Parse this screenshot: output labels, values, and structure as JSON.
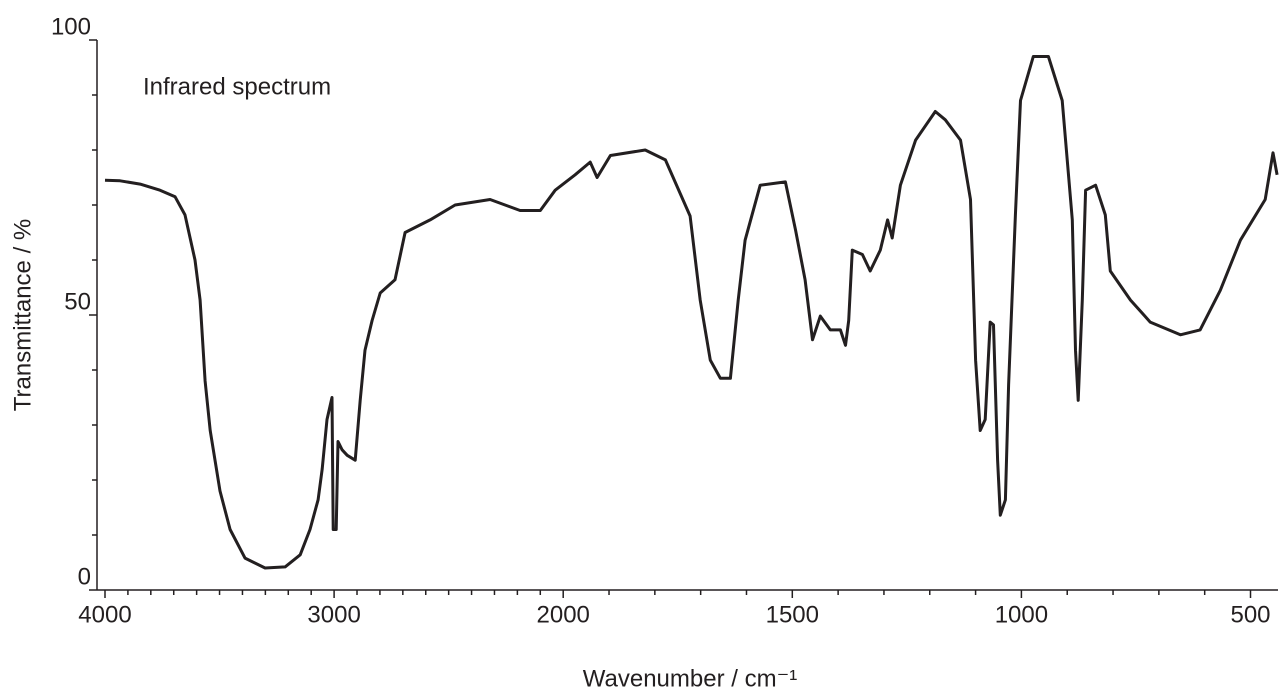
{
  "chart_data": {
    "type": "line",
    "annotation": "Infrared spectrum",
    "xlabel": "Wavenumber / cm⁻¹",
    "ylabel": "Transmittance / %",
    "xlim": [
      4000,
      440
    ],
    "x_scale_break": 2000,
    "x_scale_factor": 2,
    "xticks": [
      4000,
      3000,
      2000,
      1500,
      1000,
      500
    ],
    "xminorticks": [
      3900,
      3800,
      3700,
      3600,
      3500,
      3400,
      3300,
      3200,
      3100,
      2900,
      2800,
      2700,
      2600,
      2500,
      2400,
      2300,
      2200,
      2100,
      1900,
      1800,
      1700,
      1600,
      1400,
      1300,
      1200,
      1100,
      900,
      800,
      700,
      600
    ],
    "ylim": [
      0,
      100
    ],
    "yticks": [
      0,
      50,
      100
    ],
    "yminorticks": [
      10,
      20,
      30,
      40,
      60,
      70,
      80,
      90
    ],
    "series": [
      {
        "name": "Transmittance",
        "color": "#231f20",
        "x": [
          4000,
          3934,
          3847,
          3760,
          3694,
          3651,
          3607,
          3585,
          3563,
          3541,
          3498,
          3454,
          3389,
          3301,
          3214,
          3148,
          3105,
          3070,
          3052,
          3031,
          3009,
          3004,
          2991,
          2983,
          2965,
          2943,
          2908,
          2886,
          2865,
          2834,
          2799,
          2734,
          2690,
          2581,
          2472,
          2319,
          2188,
          2100,
          2035,
          1974,
          1941,
          1926,
          1897,
          1821,
          1777,
          1723,
          1701,
          1679,
          1657,
          1635,
          1618,
          1603,
          1570,
          1515,
          1493,
          1472,
          1456,
          1439,
          1417,
          1395,
          1384,
          1377,
          1369,
          1347,
          1330,
          1308,
          1292,
          1282,
          1264,
          1231,
          1188,
          1166,
          1133,
          1111,
          1100,
          1090,
          1079,
          1068,
          1061,
          1052,
          1046,
          1035,
          1028,
          1013,
          1002,
          974,
          941,
          911,
          889,
          882,
          876,
          867,
          860,
          838,
          817,
          806,
          762,
          719,
          653,
          610,
          566,
          522,
          468,
          451,
          442
        ],
        "values": [
          74.5,
          74.4,
          73.8,
          72.7,
          71.5,
          68.2,
          60,
          52.7,
          38,
          29,
          18,
          11,
          5.8,
          4,
          4.2,
          6.4,
          11,
          16.4,
          22,
          31,
          35,
          11,
          11,
          27,
          25.5,
          24.5,
          23.6,
          34.5,
          43.6,
          49,
          54,
          56.4,
          65,
          67.3,
          70,
          71,
          69,
          69,
          72.7,
          75.5,
          77.8,
          75,
          79,
          80,
          78.2,
          68,
          52.7,
          41.8,
          38.5,
          38.5,
          52.7,
          63.6,
          73.6,
          74.2,
          65.5,
          56.4,
          45.5,
          49.8,
          47.3,
          47.3,
          44.5,
          49,
          61.8,
          61,
          58,
          61.8,
          67.3,
          64,
          73.6,
          81.8,
          87,
          85.5,
          81.8,
          71,
          41.8,
          29,
          31,
          48.7,
          48.2,
          23.6,
          13.6,
          16.4,
          37.3,
          68.2,
          89,
          97,
          97,
          89,
          67.3,
          43.6,
          34.5,
          52.7,
          72.7,
          73.6,
          68.2,
          58,
          52.7,
          48.7,
          46.4,
          47.3,
          54.5,
          63.6,
          71,
          79.5,
          75.5
        ]
      }
    ]
  }
}
